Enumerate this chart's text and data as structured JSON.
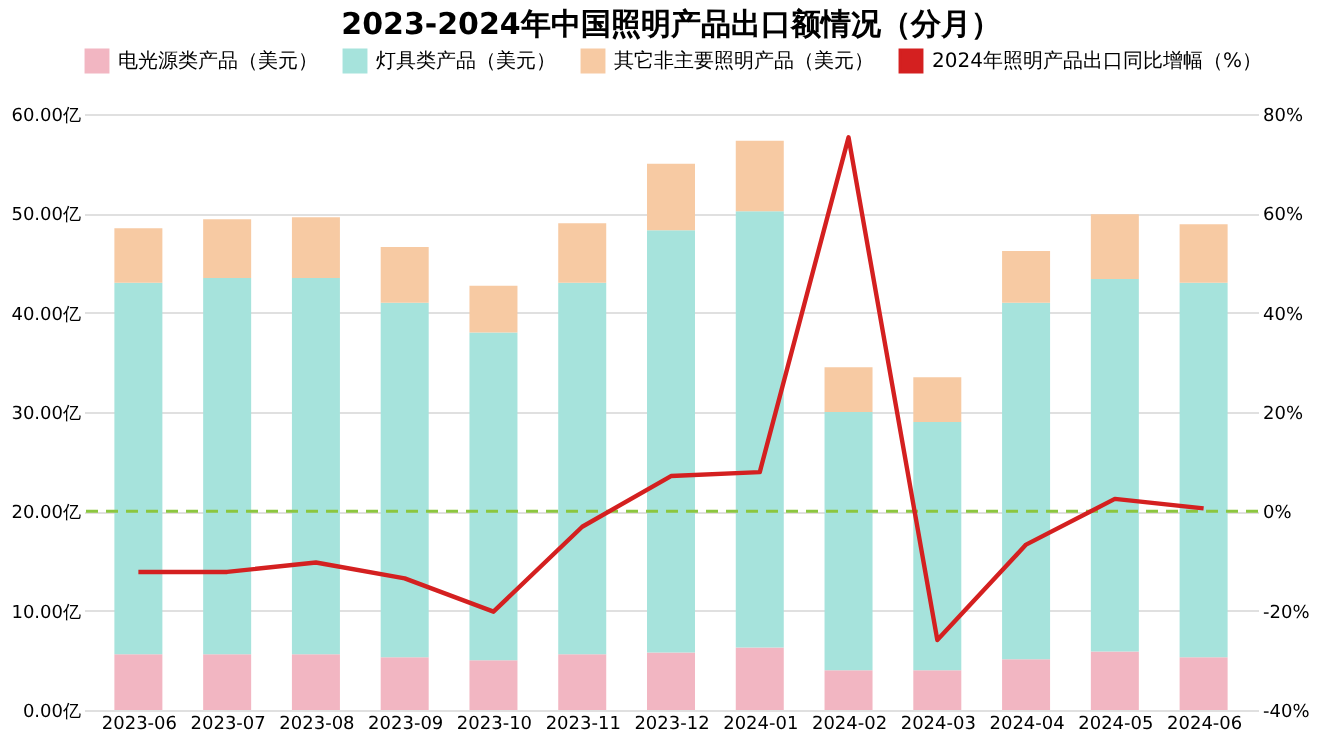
{
  "chart_data": {
    "type": "bar",
    "stacked": true,
    "title": "2023-2024年中国照明产品出口额情况（分月）",
    "categories": [
      "2023-06",
      "2023-07",
      "2023-08",
      "2023-09",
      "2023-10",
      "2023-11",
      "2023-12",
      "2024-01",
      "2024-02",
      "2024-03",
      "2024-04",
      "2024-05",
      "2024-06"
    ],
    "series": [
      {
        "name": "电光源类产品（美元）",
        "color": "#f2b6c2",
        "values": [
          5.6,
          5.6,
          5.6,
          5.3,
          5.0,
          5.6,
          5.8,
          6.3,
          4.0,
          4.0,
          5.1,
          5.9,
          5.3
        ]
      },
      {
        "name": "灯具类产品（美元）",
        "color": "#a6e3dc",
        "values": [
          37.4,
          37.9,
          37.9,
          35.7,
          33.0,
          37.4,
          42.5,
          43.9,
          26.0,
          25.0,
          35.9,
          37.5,
          37.7
        ]
      },
      {
        "name": "其它非主要照明产品（美元）",
        "color": "#f7caa3",
        "values": [
          5.5,
          5.9,
          6.1,
          5.6,
          4.7,
          6.0,
          6.7,
          7.1,
          4.5,
          4.5,
          5.2,
          6.5,
          5.9
        ]
      },
      {
        "name": "2024年照明产品出口同比增幅（%）",
        "type": "line",
        "axis": "y2",
        "color": "#d42020",
        "values": [
          -12.2,
          -12.2,
          -10.3,
          -13.5,
          -20.2,
          -3.1,
          7.1,
          7.9,
          75.3,
          -25.9,
          -6.7,
          2.5,
          0.6
        ]
      }
    ],
    "ylim": [
      0,
      60
    ],
    "yticks": [
      {
        "value": 0,
        "label": "0.00亿"
      },
      {
        "value": 10,
        "label": "10.00亿"
      },
      {
        "value": 20,
        "label": "20.00亿"
      },
      {
        "value": 30,
        "label": "30.00亿"
      },
      {
        "value": 40,
        "label": "40.00亿"
      },
      {
        "value": 50,
        "label": "50.00亿"
      },
      {
        "value": 60,
        "label": "60.00亿"
      }
    ],
    "y2lim": [
      -40,
      80
    ],
    "y2ticks": [
      {
        "value": -40,
        "label": "-40%"
      },
      {
        "value": -20,
        "label": "-20%"
      },
      {
        "value": 0,
        "label": "0%"
      },
      {
        "value": 20,
        "label": "20%"
      },
      {
        "value": 40,
        "label": "40%"
      },
      {
        "value": 60,
        "label": "60%"
      },
      {
        "value": 80,
        "label": "80%"
      }
    ],
    "ref_lines": [
      {
        "axis": "y2",
        "value": 0,
        "color": "#8cc63f",
        "line_style": "dashed"
      }
    ],
    "grid": "y",
    "legend": "top",
    "marker": "none",
    "line_style": "solid"
  }
}
